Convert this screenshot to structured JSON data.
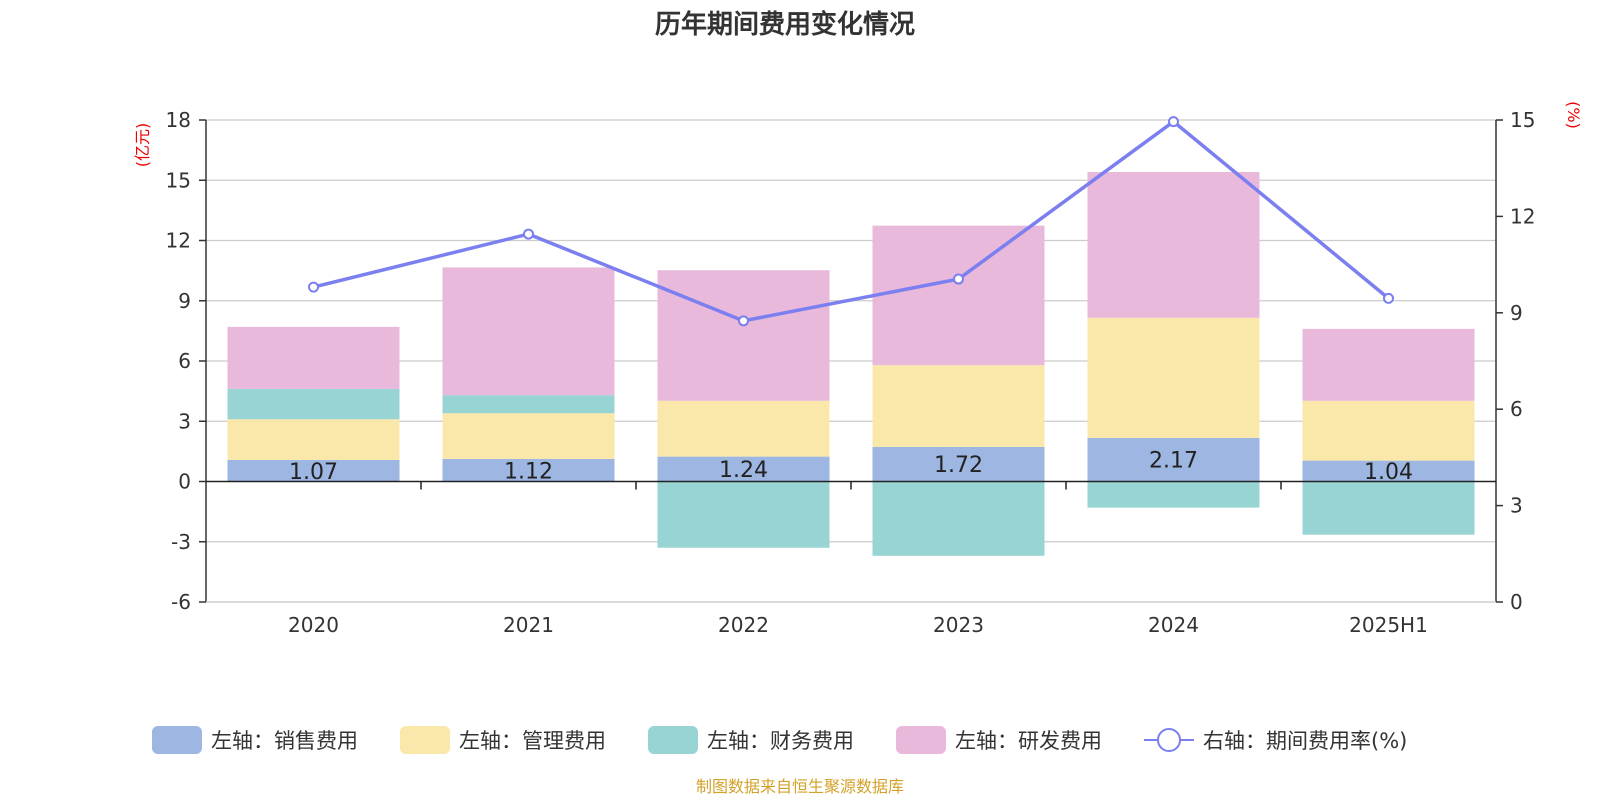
{
  "chart_data": {
    "type": "bar",
    "stacked": true,
    "title": "历年期间费用变化情况",
    "categories": [
      "2020",
      "2021",
      "2022",
      "2023",
      "2024",
      "2025H1"
    ],
    "left_axis": {
      "unit": "(亿元)",
      "range": [
        -6,
        18
      ],
      "ticks": [
        "-6",
        "-3",
        "0",
        "3",
        "6",
        "9",
        "12",
        "15",
        "18"
      ]
    },
    "right_axis": {
      "unit": "(%)",
      "range": [
        0,
        15
      ],
      "ticks": [
        "0",
        "3",
        "6",
        "9",
        "12",
        "15"
      ]
    },
    "grid": true,
    "series": [
      {
        "name": "左轴：销售费用",
        "axis": "left",
        "type": "bar",
        "color": "#9db6e2",
        "values": [
          1.07,
          1.12,
          1.24,
          1.72,
          2.17,
          1.04
        ],
        "labels": [
          "1.07",
          "1.12",
          "1.24",
          "1.72",
          "2.17",
          "1.04"
        ]
      },
      {
        "name": "左轴：管理费用",
        "axis": "left",
        "type": "bar",
        "color": "#f9e8a9",
        "values": [
          2.03,
          2.28,
          2.78,
          4.07,
          5.98,
          2.98
        ]
      },
      {
        "name": "左轴：财务费用",
        "axis": "left",
        "type": "bar",
        "color": "#98d4d4",
        "values": [
          1.51,
          0.9,
          -3.3,
          -3.7,
          -1.3,
          -2.65
        ]
      },
      {
        "name": "左轴：研发费用",
        "axis": "left",
        "type": "bar",
        "color": "#e8b9da",
        "values": [
          3.09,
          6.36,
          6.5,
          6.95,
          7.26,
          3.58
        ]
      },
      {
        "name": "右轴：期间费用率(%)",
        "axis": "right",
        "type": "line",
        "color": "#7b7fef",
        "values": [
          9.8,
          11.45,
          8.75,
          10.05,
          14.95,
          9.45
        ]
      }
    ],
    "legend_position": "bottom",
    "source": "制图数据来自恒生聚源数据库"
  }
}
